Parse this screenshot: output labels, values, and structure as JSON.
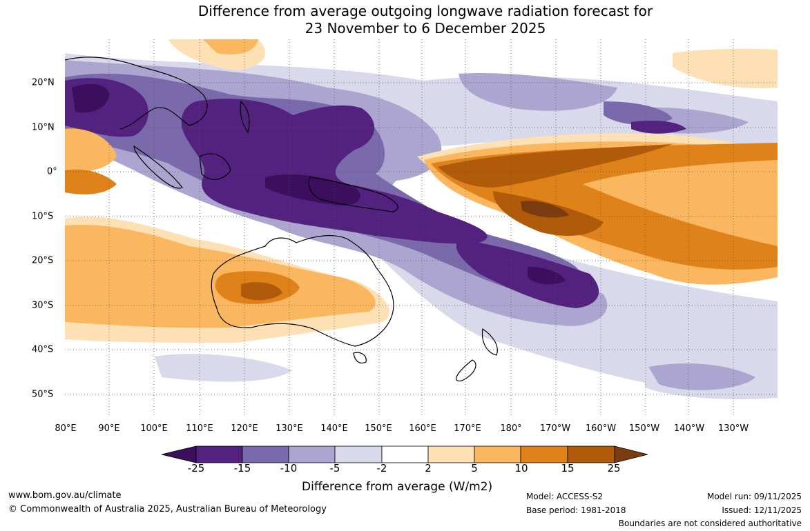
{
  "title": {
    "line1": "Difference from average outgoing longwave radiation forecast for",
    "line2": "23 November to 6 December 2025"
  },
  "map": {
    "lon_labels": [
      "80°E",
      "90°E",
      "100°E",
      "110°E",
      "120°E",
      "130°E",
      "140°E",
      "150°E",
      "160°E",
      "170°E",
      "180°",
      "170°W",
      "160°W",
      "150°W",
      "140°W",
      "130°W"
    ],
    "lat_labels": [
      "20°N",
      "10°N",
      "0°",
      "10°S",
      "20°S",
      "30°S",
      "40°S",
      "50°S"
    ]
  },
  "colorbar": {
    "ticks": [
      "-25",
      "-15",
      "-10",
      "-5",
      "-2",
      "2",
      "5",
      "10",
      "15",
      "25"
    ],
    "colors": [
      "#3b0f5e",
      "#53227f",
      "#7b6aab",
      "#aba5cf",
      "#d9d9ec",
      "#ffffff",
      "#fde0b4",
      "#fbb660",
      "#e0821a",
      "#b05b0a",
      "#7a3c0f"
    ],
    "label": "Difference from average (W/m2)"
  },
  "footer": {
    "website": "www.bom.gov.au/climate",
    "copyright": "© Commonwealth of Australia 2025, Australian Bureau of Meteorology",
    "model": "Model: ACCESS-S2",
    "base_period": "Base period: 1981-2018",
    "model_run": "Model run: 09/11/2025",
    "issued": "Issued: 12/11/2025",
    "disclaimer": "Boundaries are not considered authoritative"
  }
}
